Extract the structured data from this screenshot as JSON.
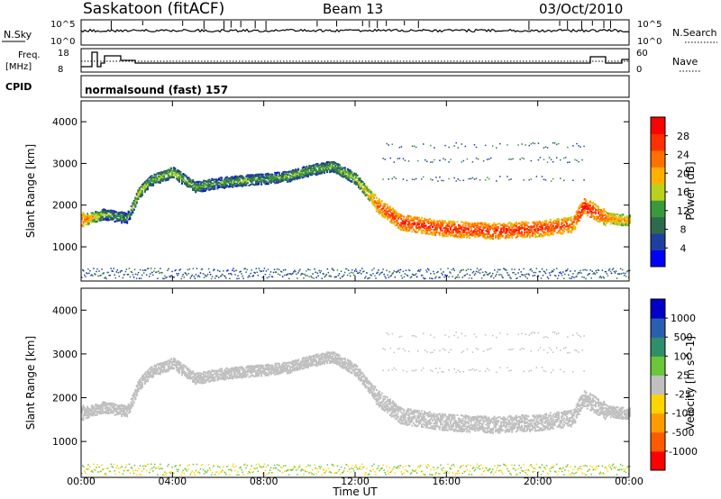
{
  "header": {
    "station": "Saskatoon (fitACF)",
    "beam": "Beam 13",
    "date": "03/Oct/2010"
  },
  "panels": {
    "nsky": {
      "label": "N.Sky",
      "ticks": [
        "10^5",
        "10^0"
      ],
      "right_label": "N.Search",
      "right_ticks": [
        "10^5",
        "10^0"
      ]
    },
    "freq": {
      "label_line1": "Freq.",
      "label_line2": "[MHz]",
      "ticks": [
        "18",
        "8"
      ],
      "right_label": "Nave",
      "right_ticks": [
        "60",
        "0"
      ]
    },
    "cpid": {
      "label": "CPID",
      "text": "normalsound (fast) 157"
    }
  },
  "colors": {
    "power": [
      "#0000ff",
      "#1f3f9f",
      "#2e6b4e",
      "#3a9a3a",
      "#b9d11c",
      "#ffb000",
      "#ff7000",
      "#ff3000",
      "#ff0000"
    ],
    "velocity": [
      "#0000c8",
      "#2a5fb0",
      "#2e8f6a",
      "#6bc63a",
      "#c0c0c0",
      "#ffd400",
      "#ff9a00",
      "#ff5a00",
      "#ff0000"
    ],
    "ground_scatter": "#c0c0c0"
  },
  "chart_data": [
    {
      "type": "heatmap",
      "title": "Power",
      "xlabel": "Time UT",
      "ylabel": "Slant Range [km]",
      "xlim": [
        0,
        24
      ],
      "ylim": [
        180,
        4500
      ],
      "x_ticks": [
        "00:00",
        "04:00",
        "08:00",
        "12:00",
        "16:00",
        "20:00",
        "00:00"
      ],
      "y_ticks": [
        1000,
        2000,
        3000,
        4000
      ],
      "colorbar": {
        "label": "Power [dB]",
        "ticks": [
          "4",
          "8",
          "12",
          "16",
          "20",
          "24",
          "28"
        ],
        "range": [
          0,
          32
        ]
      },
      "scatter_band": {
        "x_hours": [
          0,
          1,
          2,
          2.5,
          3,
          4,
          5,
          6,
          7,
          8,
          9,
          10,
          11,
          12,
          13,
          14,
          16,
          18,
          20,
          21.5,
          22,
          23,
          24
        ],
        "center_km": [
          1650,
          1800,
          1700,
          2300,
          2600,
          2800,
          2450,
          2550,
          2600,
          2650,
          2700,
          2850,
          2950,
          2650,
          2000,
          1600,
          1450,
          1400,
          1450,
          1550,
          2000,
          1700,
          1650
        ],
        "power_db": [
          26,
          14,
          12,
          18,
          14,
          16,
          14,
          12,
          14,
          12,
          14,
          14,
          14,
          16,
          26,
          28,
          28,
          28,
          28,
          26,
          30,
          24,
          20
        ]
      }
    },
    {
      "type": "heatmap",
      "title": "Velocity",
      "xlabel": "Time UT",
      "ylabel": "Slant Range [km]",
      "xlim": [
        0,
        24
      ],
      "ylim": [
        180,
        4500
      ],
      "x_ticks": [
        "00:00",
        "04:00",
        "08:00",
        "12:00",
        "16:00",
        "20:00",
        "00:00"
      ],
      "y_ticks": [
        1000,
        2000,
        3000,
        4000
      ],
      "colorbar": {
        "label": "Velocity [m s^-1]",
        "ticks": [
          "1000",
          "500",
          "100",
          "25",
          "-25",
          "-100",
          "-500",
          "-1000"
        ]
      }
    }
  ]
}
